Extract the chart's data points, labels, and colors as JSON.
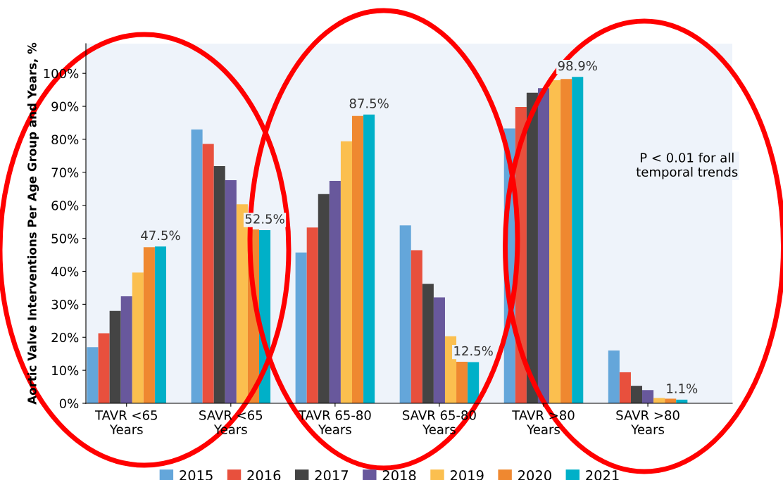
{
  "chart_data": {
    "type": "bar",
    "ylabel": "Aortic Valve Interventions Per Age Group and Years, %",
    "categories": [
      "TAVR <65\nYears",
      "SAVR <65\nYears",
      "TAVR 65-80\nYears",
      "SAVR 65-80\nYears",
      "TAVR >80\nYears",
      "SAVR >80\nYears"
    ],
    "series": [
      {
        "name": "2015",
        "color": "#64a6da",
        "values": [
          17,
          83,
          45.7,
          53.9,
          83.3,
          16
        ]
      },
      {
        "name": "2016",
        "color": "#e8503d",
        "values": [
          21.2,
          78.6,
          53.3,
          46.4,
          89.8,
          9.4
        ]
      },
      {
        "name": "2017",
        "color": "#444444",
        "values": [
          28,
          71.9,
          63.4,
          36.2,
          94.1,
          5.3
        ]
      },
      {
        "name": "2018",
        "color": "#68589c",
        "values": [
          32.4,
          67.6,
          67.4,
          32.1,
          95.5,
          4.0
        ]
      },
      {
        "name": "2019",
        "color": "#fbbf4f",
        "values": [
          39.6,
          60.3,
          79.4,
          20.3,
          97.9,
          1.6
        ]
      },
      {
        "name": "2020",
        "color": "#ef8830",
        "values": [
          47.3,
          52.7,
          87.1,
          12.6,
          98.3,
          1.4
        ]
      },
      {
        "name": "2021",
        "color": "#00b0c8",
        "values": [
          47.5,
          52.5,
          87.5,
          12.5,
          98.9,
          1.1
        ],
        "value_labels": [
          "47.5%",
          "52.5%",
          "87.5%",
          "12.5%",
          "98.9%",
          "1.1%"
        ]
      }
    ],
    "ylim": [
      0,
      109
    ],
    "yticks": [
      {
        "value": 0,
        "label": "0%"
      },
      {
        "value": 10,
        "label": "10%"
      },
      {
        "value": 20,
        "label": "20%"
      },
      {
        "value": 30,
        "label": "30%"
      },
      {
        "value": 40,
        "label": "40%"
      },
      {
        "value": 50,
        "label": "50%"
      },
      {
        "value": 60,
        "label": "60%"
      },
      {
        "value": 70,
        "label": "70%"
      },
      {
        "value": 80,
        "label": "80%"
      },
      {
        "value": 90,
        "label": "90%"
      },
      {
        "value": 100,
        "label": "100%"
      }
    ],
    "annotations": [
      "P < 0.01 for all\ntemporal trends"
    ],
    "legend": "bottom",
    "grid": false
  }
}
